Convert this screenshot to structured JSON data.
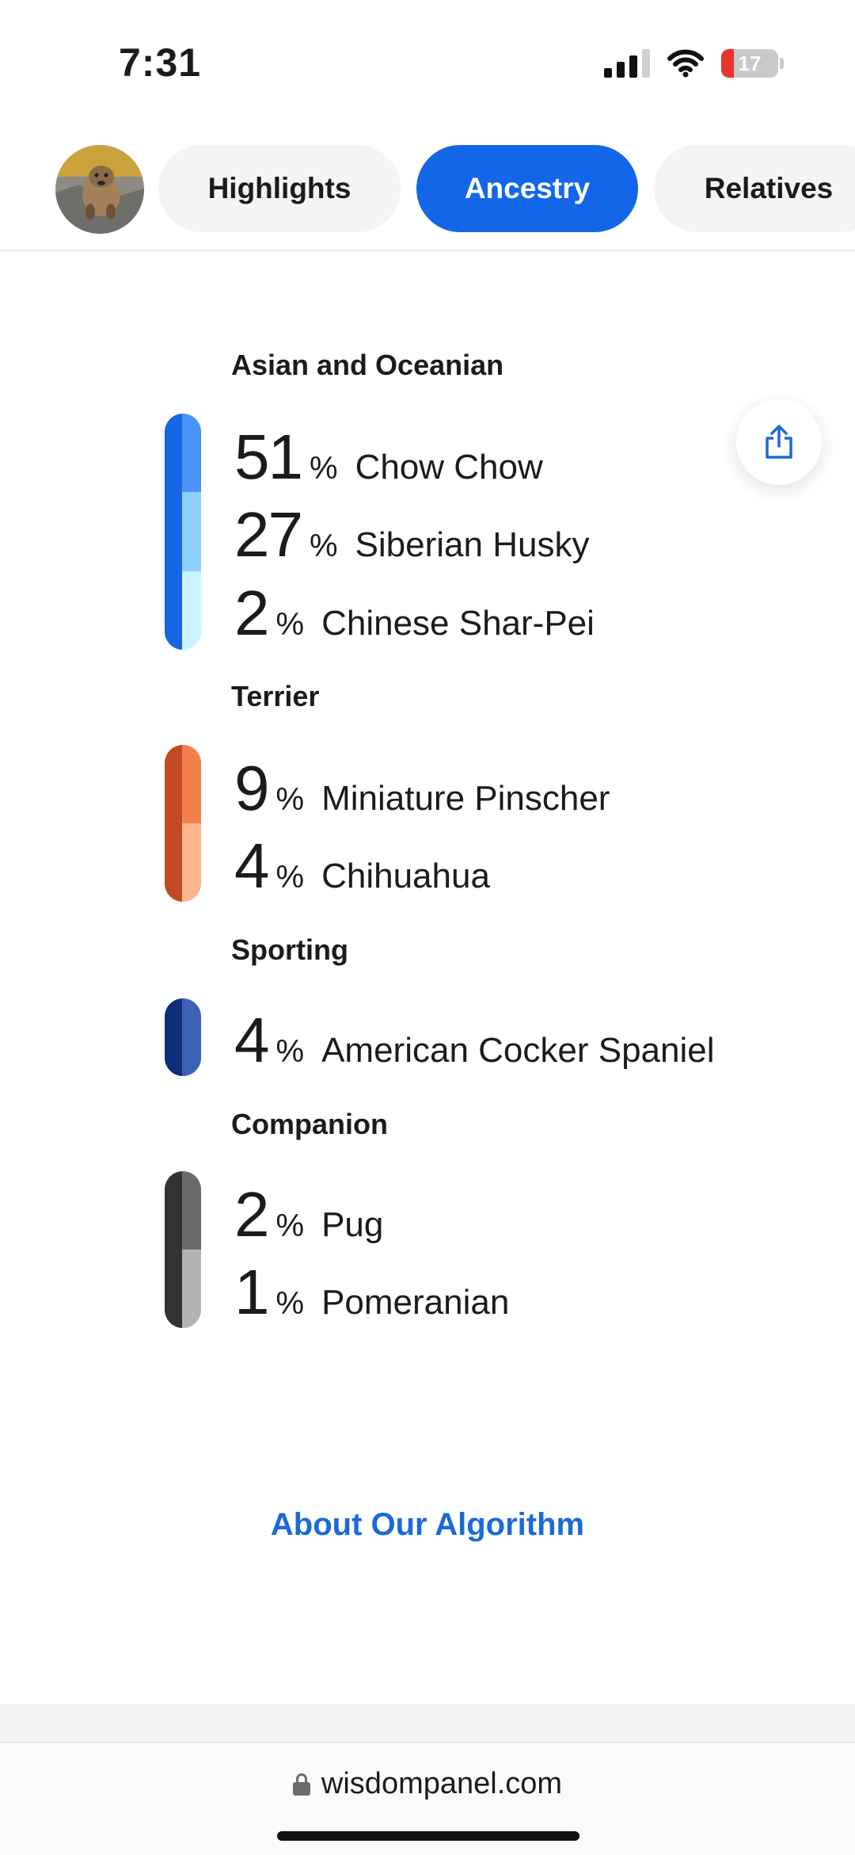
{
  "status_bar": {
    "time": "7:31",
    "battery": "17"
  },
  "tabs": [
    {
      "label": "Highlights",
      "active": false
    },
    {
      "label": "Ancestry",
      "active": true
    },
    {
      "label": "Relatives",
      "active": false
    }
  ],
  "groups": [
    {
      "title": "Asian and Oceanian",
      "breeds": [
        {
          "percent": "51",
          "name": "Chow Chow"
        },
        {
          "percent": "27",
          "name": "Siberian Husky"
        },
        {
          "percent": "2",
          "name": "Chinese Shar-Pei"
        }
      ]
    },
    {
      "title": "Terrier",
      "breeds": [
        {
          "percent": "9",
          "name": "Miniature Pinscher"
        },
        {
          "percent": "4",
          "name": "Chihuahua"
        }
      ]
    },
    {
      "title": "Sporting",
      "breeds": [
        {
          "percent": "4",
          "name": "American Cocker Spaniel"
        }
      ]
    },
    {
      "title": "Companion",
      "breeds": [
        {
          "percent": "2",
          "name": "Pug"
        },
        {
          "percent": "1",
          "name": "Pomeranian"
        }
      ]
    }
  ],
  "percent_sign": "%",
  "about_link": "About Our Algorithm",
  "url": "wisdompanel.com",
  "icons": {
    "share": "share-icon",
    "lock": "lock-icon",
    "signal": "signal-icon",
    "wifi": "wifi-icon",
    "battery": "battery-icon"
  },
  "colors": {
    "accent": "#1366e8",
    "link": "#1a6ad8",
    "asian": [
      "#1666e6",
      "#4a95f5",
      "#8fd0fb",
      "#c9f4ff"
    ],
    "terrier": [
      "#c24a22",
      "#f47f4e",
      "#fbb48e"
    ],
    "sporting": [
      "#0f2e78",
      "#3b62b4"
    ],
    "companion": [
      "#333333",
      "#6a6a6a",
      "#b3b3b3"
    ]
  }
}
